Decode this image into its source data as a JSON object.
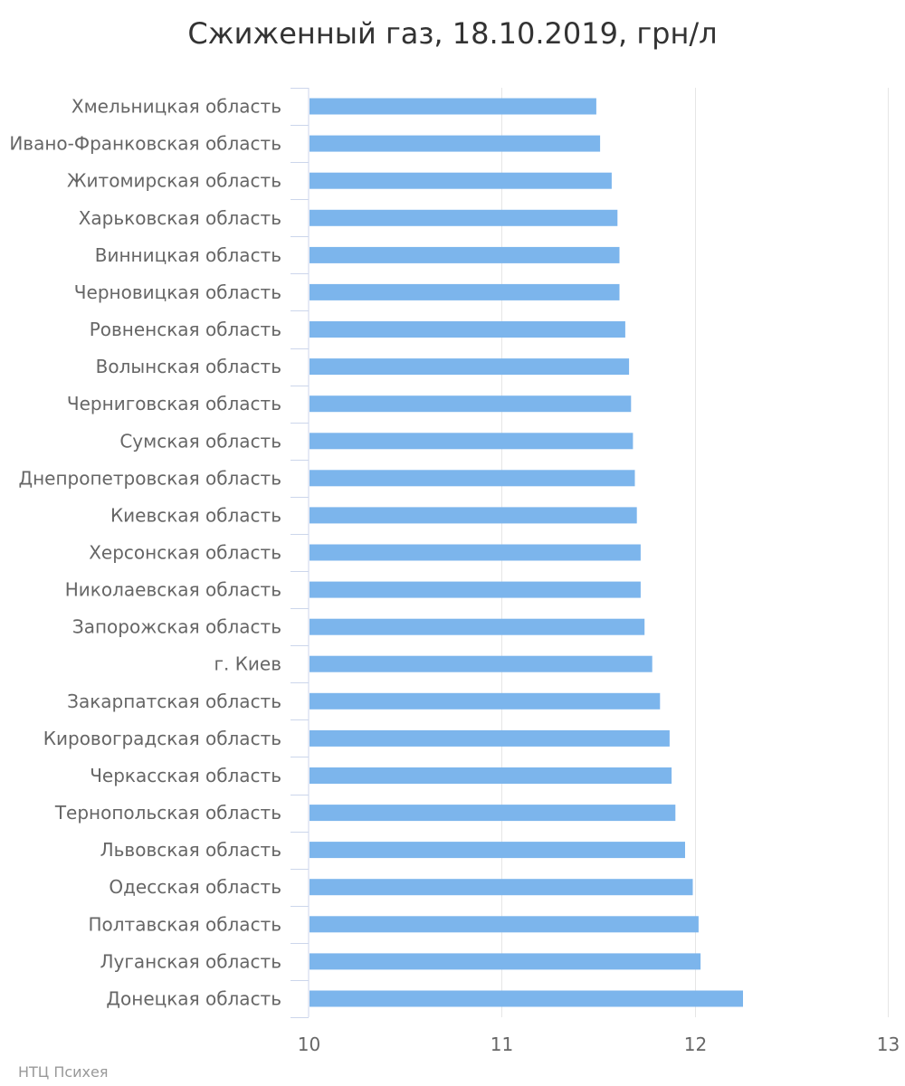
{
  "chart_data": {
    "type": "bar",
    "orientation": "horizontal",
    "title": "Сжиженный газ, 18.10.2019, грн/л",
    "xlabel": "",
    "ylabel": "",
    "xlim": [
      10,
      13
    ],
    "ticks": [
      "10",
      "11",
      "12",
      "13"
    ],
    "tick_values": [
      10,
      11,
      12,
      13
    ],
    "grid": true,
    "legend": false,
    "bar_color": "#7cb5ec",
    "categories": [
      "Хмельницкая область",
      "Ивано-Франковская область",
      "Житомирская область",
      "Харьковская область",
      "Винницкая область",
      "Черновицкая область",
      "Ровненская область",
      "Волынская область",
      "Черниговская область",
      "Сумская область",
      "Днепропетровская область",
      "Киевская область",
      "Херсонская область",
      "Николаевская область",
      "Запорожская область",
      "г. Киев",
      "Закарпатская область",
      "Кировоградская область",
      "Черкасская область",
      "Тернопольская область",
      "Львовская область",
      "Одесская область",
      "Полтавская область",
      "Луганская область",
      "Донецкая область"
    ],
    "values": [
      11.49,
      11.51,
      11.57,
      11.6,
      11.61,
      11.61,
      11.64,
      11.66,
      11.67,
      11.68,
      11.69,
      11.7,
      11.72,
      11.72,
      11.74,
      11.78,
      11.82,
      11.87,
      11.88,
      11.9,
      11.95,
      11.99,
      12.02,
      12.03,
      12.25
    ]
  },
  "credit": "НТЦ Психея"
}
